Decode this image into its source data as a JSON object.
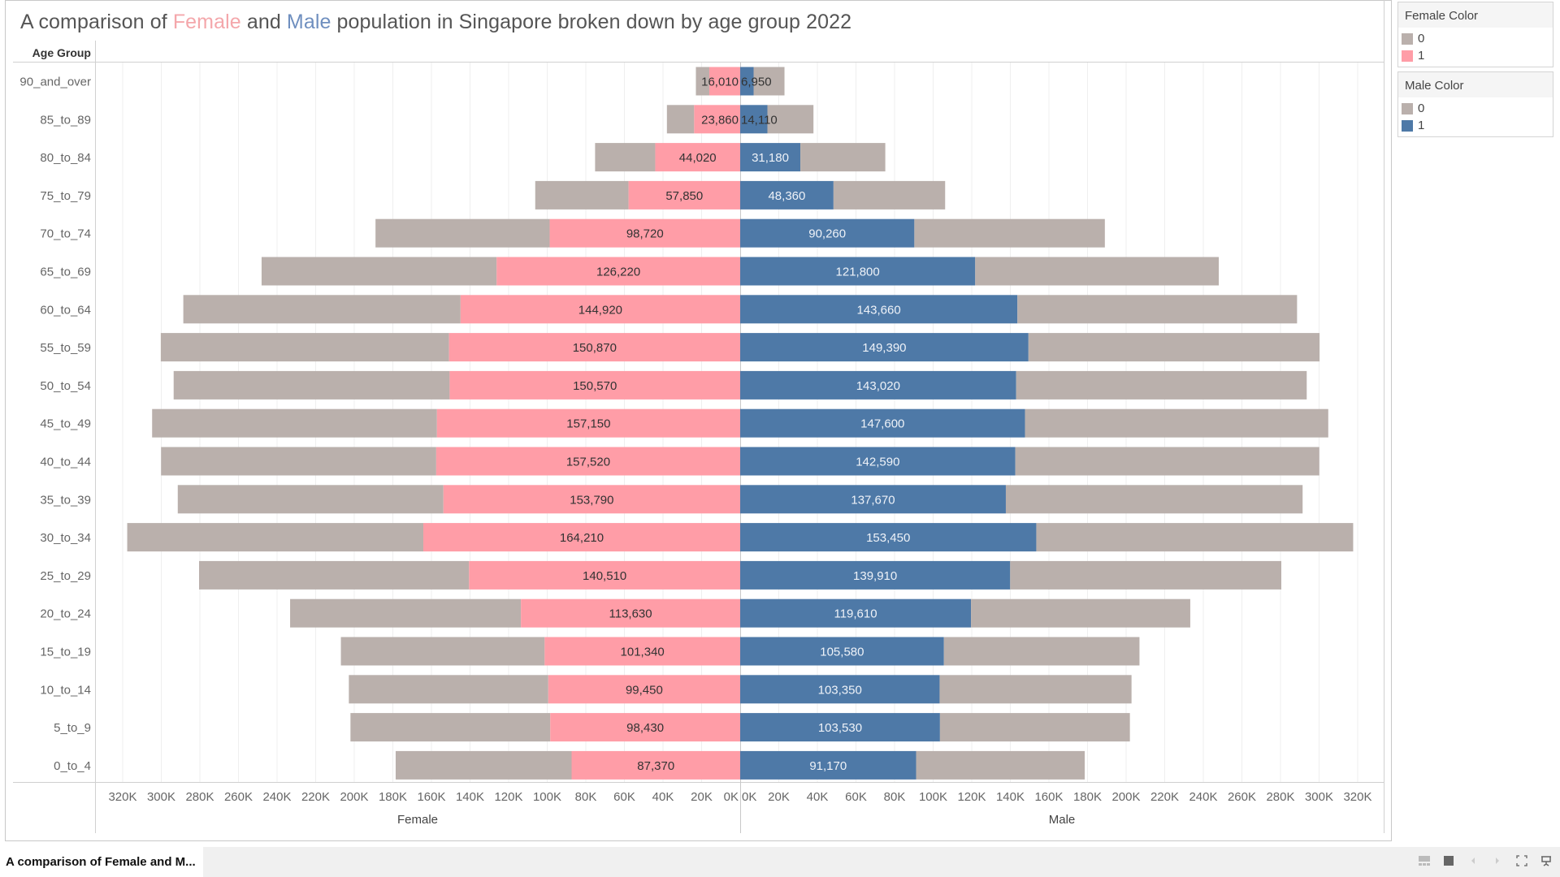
{
  "title": {
    "prefix": "A comparison of ",
    "female_word": "Female",
    "middle": " and ",
    "male_word": "Male",
    "suffix": " population in Singapore broken down by age group 2022"
  },
  "colors": {
    "female": "#ff9da7",
    "male": "#4e79a7",
    "other": "#bab0ac",
    "female_title": "#f4a7ab",
    "male_title": "#6f8fbf"
  },
  "legends": [
    {
      "title": "Female Color",
      "items": [
        {
          "label": "0",
          "color": "#bab0ac"
        },
        {
          "label": "1",
          "color": "#ff9da7"
        }
      ]
    },
    {
      "title": "Male Color",
      "items": [
        {
          "label": "0",
          "color": "#bab0ac"
        },
        {
          "label": "1",
          "color": "#4e79a7"
        }
      ]
    }
  ],
  "footer": {
    "sheet_tab": "A comparison of Female and M...",
    "controls": [
      "grid-view-icon",
      "single-view-icon",
      "prev-icon",
      "next-icon",
      "fullscreen-icon",
      "present-icon"
    ]
  },
  "chart_data": {
    "type": "bar",
    "subtype": "population-pyramid-stacked",
    "title": "A comparison of Female and Male population in Singapore broken down by age group 2022",
    "row_header": "Age Group",
    "categories": [
      "90_and_over",
      "85_to_89",
      "80_to_84",
      "75_to_79",
      "70_to_74",
      "65_to_69",
      "60_to_64",
      "55_to_59",
      "50_to_54",
      "45_to_49",
      "40_to_44",
      "35_to_39",
      "30_to_34",
      "25_to_29",
      "20_to_24",
      "15_to_19",
      "10_to_14",
      "5_to_9",
      "0_to_4"
    ],
    "series": [
      {
        "name": "Female",
        "values": [
          16010,
          23860,
          44020,
          57850,
          98720,
          126220,
          144920,
          150870,
          150570,
          157150,
          157520,
          153790,
          164210,
          140510,
          113630,
          101340,
          99450,
          98430,
          87370
        ]
      },
      {
        "name": "Male",
        "values": [
          6950,
          14110,
          31180,
          48360,
          90260,
          121800,
          143660,
          149390,
          143020,
          147600,
          142590,
          137670,
          153450,
          139910,
          119610,
          105580,
          103350,
          103530,
          91170
        ]
      }
    ],
    "stacking_note": "Each side stacks its own gender (color 1) plus the other gender (color 0, grey)",
    "panels": [
      {
        "xlabel": "Female",
        "direction": "reversed",
        "xlim": [
          0,
          320000
        ],
        "ticks": [
          "320K",
          "300K",
          "280K",
          "260K",
          "240K",
          "220K",
          "200K",
          "180K",
          "160K",
          "140K",
          "120K",
          "100K",
          "80K",
          "60K",
          "40K",
          "20K",
          "0K"
        ]
      },
      {
        "xlabel": "Male",
        "direction": "normal",
        "xlim": [
          0,
          320000
        ],
        "ticks": [
          "0K",
          "20K",
          "40K",
          "60K",
          "80K",
          "100K",
          "120K",
          "140K",
          "160K",
          "180K",
          "200K",
          "220K",
          "240K",
          "260K",
          "280K",
          "300K",
          "320K"
        ]
      }
    ],
    "grid": true,
    "legend_position": "right"
  }
}
